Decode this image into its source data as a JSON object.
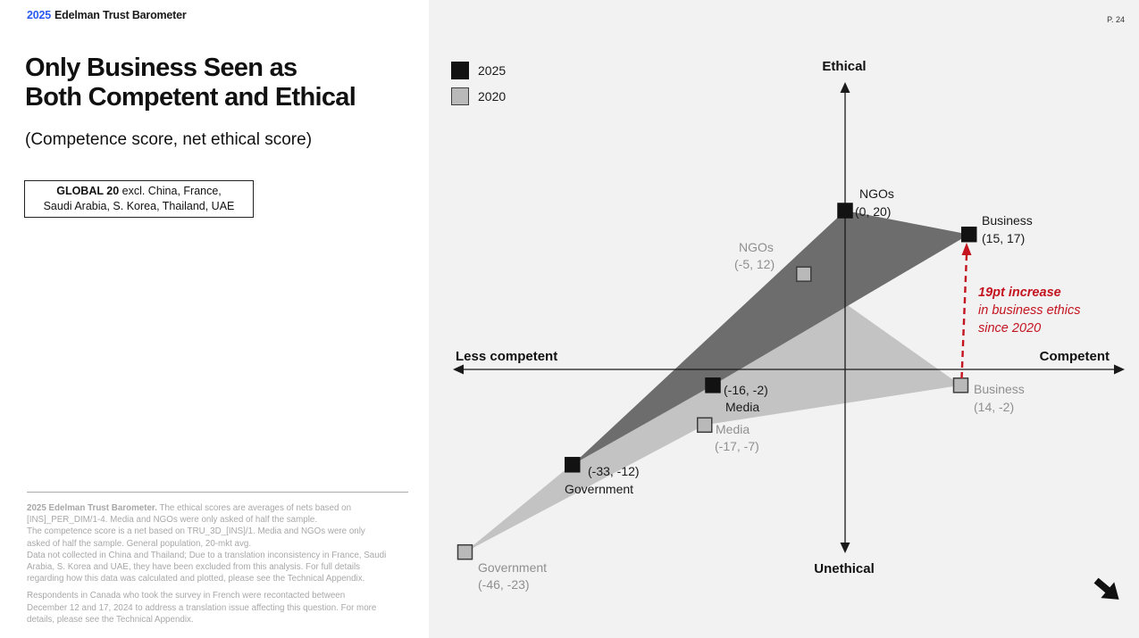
{
  "colors": {
    "brand_blue": "#2b5bf0",
    "accent_red": "#c41420",
    "chart_bg": "#f2f2f2",
    "polygon_2025": "#6d6d6d",
    "polygon_2020": "#c3c3c3"
  },
  "page": {
    "number_label": "P. 24"
  },
  "header": {
    "year": "2025",
    "brand": "Edelman Trust Barometer"
  },
  "title_lines": [
    "Only Business Seen as",
    "Both Competent and Ethical"
  ],
  "subtitle": "(Competence score, net ethical score)",
  "scope_box": {
    "bold": "GLOBAL 20",
    "line1_rest": " excl. China, France,",
    "line2": "Saudi Arabia, S. Korea, Thailand, UAE"
  },
  "footnotes": {
    "p1_lead_bold": "2025 Edelman Trust Barometer.",
    "p1_lines": [
      " The ethical scores are averages of nets based on",
      "[INS]_PER_DIM/1-4. Media and NGOs were only asked of half the sample.",
      "The competence score is a net based on TRU_3D_[INS]/1. Media and NGOs were only",
      "asked of half the sample. General population, 20-mkt avg.",
      "Data not collected in China and Thailand; Due to a translation inconsistency in France, Saudi",
      "Arabia, S. Korea and UAE, they have been excluded from this analysis. For full details",
      "regarding how this data was calculated and plotted, please see the Technical Appendix."
    ],
    "p2_lines": [
      "Respondents in Canada who took the survey in French were recontacted between",
      "December 12 and 17, 2024 to address a translation issue affecting this question. For more",
      "details, please see the Technical Appendix."
    ]
  },
  "annotation": {
    "lines": [
      "19pt increase",
      "in business ethics",
      "since 2020"
    ],
    "color": "#c41420"
  },
  "chart_data": {
    "type": "scatter",
    "title": "Only Business Seen as Both Competent and Ethical",
    "subtitle": "(Competence score, net ethical score)",
    "axis_labels": {
      "top": "Ethical",
      "bottom": "Unethical",
      "left": "Less competent",
      "right": "Competent"
    },
    "xlim": [
      -47,
      34
    ],
    "ylim": [
      -23,
      36
    ],
    "grid": false,
    "legend_position": "top-left",
    "series": [
      {
        "name": "2025",
        "marker_color": "#121212",
        "marker_border": "#121212",
        "polygon_color": "#6d6d6d",
        "label_color": "#1a1a1a",
        "points": [
          {
            "label": "NGOs",
            "x": 0,
            "y": 20
          },
          {
            "label": "Business",
            "x": 15,
            "y": 17
          },
          {
            "label": "Media",
            "x": -16,
            "y": -2
          },
          {
            "label": "Government",
            "x": -33,
            "y": -12
          }
        ]
      },
      {
        "name": "2020",
        "marker_color": "#b9b9b9",
        "marker_border": "#3d3d3d",
        "polygon_color": "#c3c3c3",
        "label_color": "#8f8f8f",
        "points": [
          {
            "label": "NGOs",
            "x": -5,
            "y": 12
          },
          {
            "label": "Business",
            "x": 14,
            "y": -2
          },
          {
            "label": "Media",
            "x": -17,
            "y": -7
          },
          {
            "label": "Government",
            "x": -46,
            "y": -23
          }
        ]
      }
    ]
  }
}
